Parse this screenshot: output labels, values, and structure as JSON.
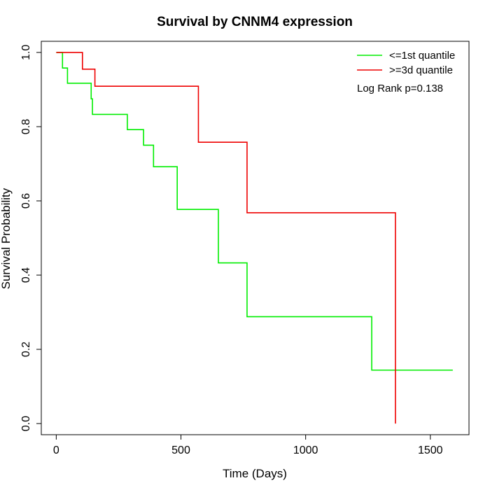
{
  "chart_data": {
    "type": "line",
    "title": "Survival by CNNM4 expression",
    "xlabel": "Time (Days)",
    "ylabel": "Survival Probability",
    "xlim": [
      -60,
      1655
    ],
    "ylim": [
      -0.03,
      1.03
    ],
    "xticks": [
      0,
      500,
      1000,
      1500
    ],
    "yticks": [
      0.0,
      0.2,
      0.4,
      0.6,
      0.8,
      1.0
    ],
    "xtick_labels": [
      "0",
      "500",
      "1000",
      "1500"
    ],
    "ytick_labels": [
      "0.0",
      "0.2",
      "0.4",
      "0.6",
      "0.8",
      "1.0"
    ],
    "grid": false,
    "legend_position": "top-right",
    "annotation": "Log Rank p=0.138",
    "series": [
      {
        "name": "<=1st quantile",
        "color": "#00ee00",
        "step": true,
        "x": [
          0,
          25,
          45,
          140,
          145,
          285,
          350,
          390,
          485,
          650,
          765,
          1265,
          1590
        ],
        "y": [
          1.0,
          0.958,
          0.917,
          0.875,
          0.833,
          0.792,
          0.75,
          0.692,
          0.577,
          0.433,
          0.288,
          0.144,
          0.144
        ]
      },
      {
        "name": ">=3d quantile",
        "color": "#ee0000",
        "step": true,
        "x": [
          0,
          105,
          155,
          570,
          765,
          1360,
          1360
        ],
        "y": [
          1.0,
          0.955,
          0.909,
          0.758,
          0.568,
          0.568,
          0.0
        ]
      }
    ]
  }
}
